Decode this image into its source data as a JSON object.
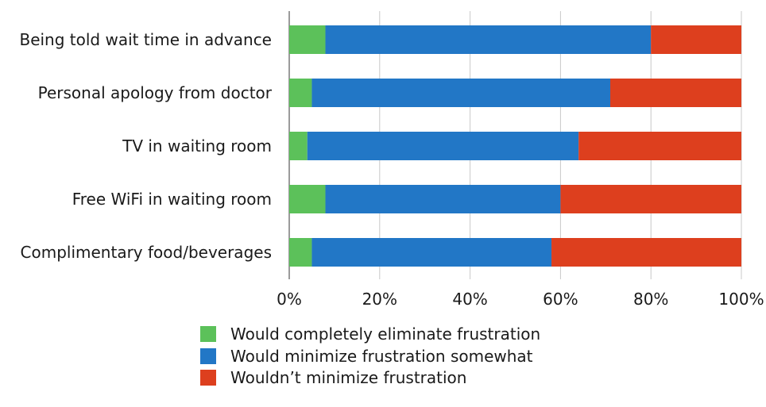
{
  "chart_data": {
    "type": "bar",
    "orientation": "horizontal",
    "stacked": true,
    "categories": [
      "Being told wait time in advance",
      "Personal apology from doctor",
      "TV in waiting room",
      "Free WiFi in waiting room",
      "Complimentary food/beverages"
    ],
    "series": [
      {
        "name": "Would completely eliminate frustration",
        "color": "#5cc15a",
        "values": [
          8,
          5,
          4,
          8,
          5
        ]
      },
      {
        "name": "Would minimize frustration somewhat",
        "color": "#2277c6",
        "values": [
          72,
          66,
          60,
          52,
          53
        ]
      },
      {
        "name": "Wouldn’t minimize frustration",
        "color": "#dd3f1e",
        "values": [
          20,
          29,
          36,
          40,
          42
        ]
      }
    ],
    "xlim": [
      0,
      100
    ],
    "x_ticks": [
      "0%",
      "20%",
      "40%",
      "60%",
      "80%",
      "100%"
    ],
    "grid": true,
    "legend_position": "bottom"
  }
}
